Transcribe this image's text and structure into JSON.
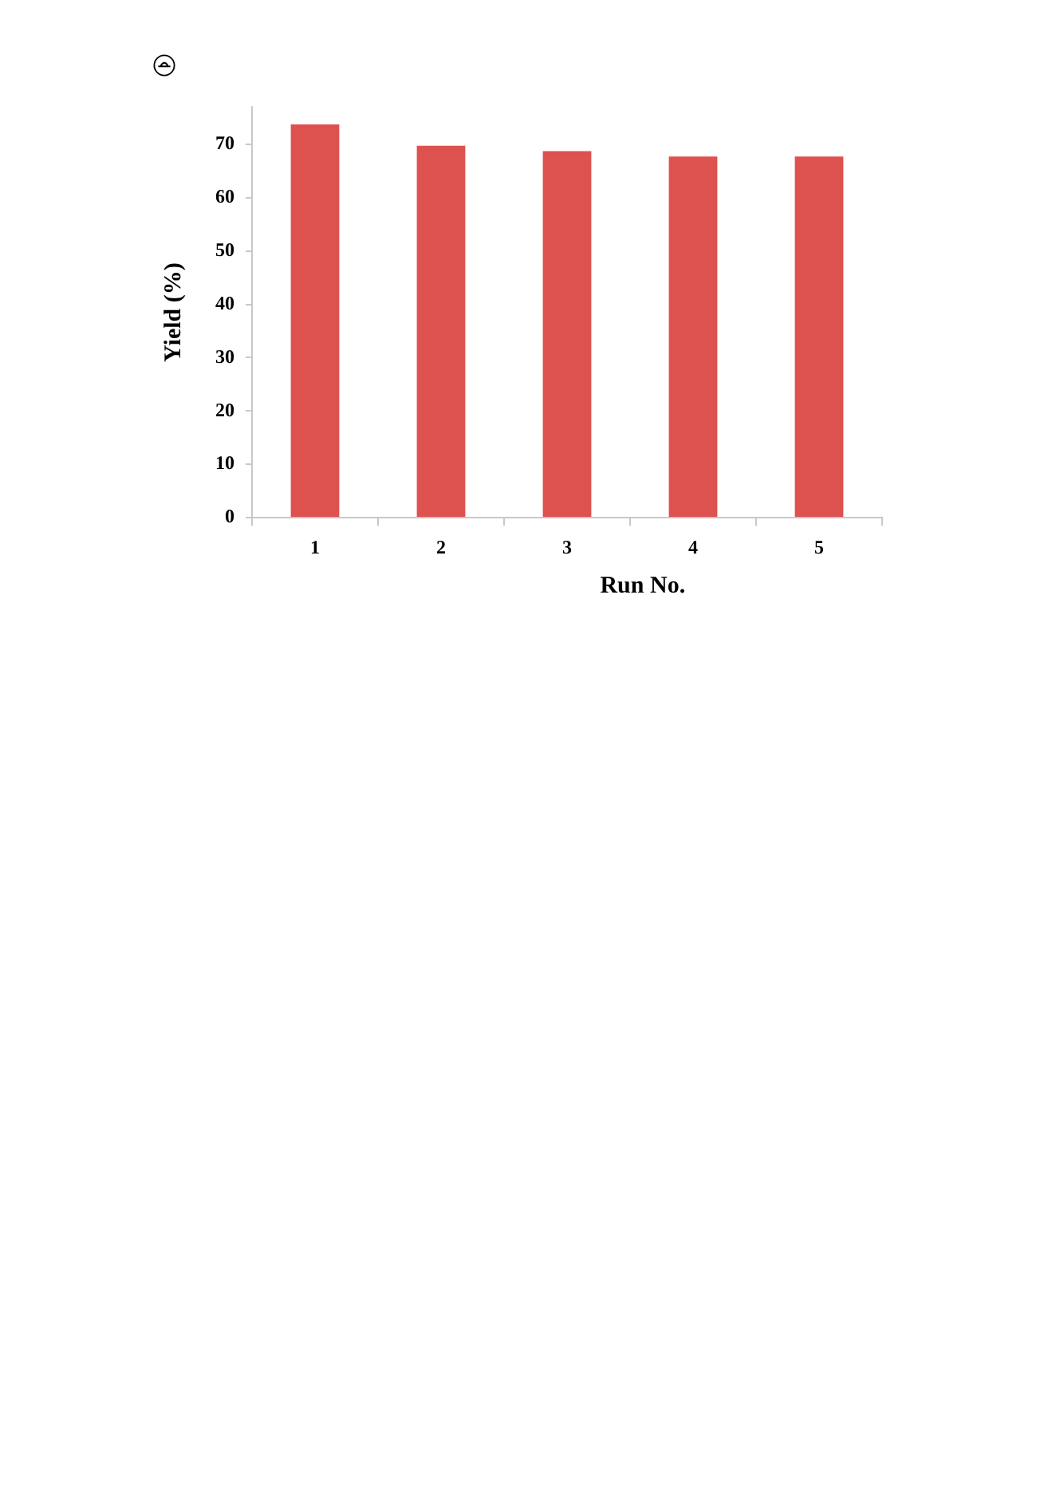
{
  "chart_data": {
    "type": "bar",
    "categories": [
      "1",
      "2",
      "3",
      "4",
      "5"
    ],
    "values": [
      74,
      70,
      69,
      68,
      68
    ],
    "color": "#dd514f",
    "xlabel": "Run No.",
    "ylabel": "Yield (%)",
    "ylim": [
      0,
      77
    ],
    "yticks": [
      0,
      10,
      20,
      30,
      40,
      50,
      60,
      70
    ],
    "grid": false,
    "legend": false
  }
}
